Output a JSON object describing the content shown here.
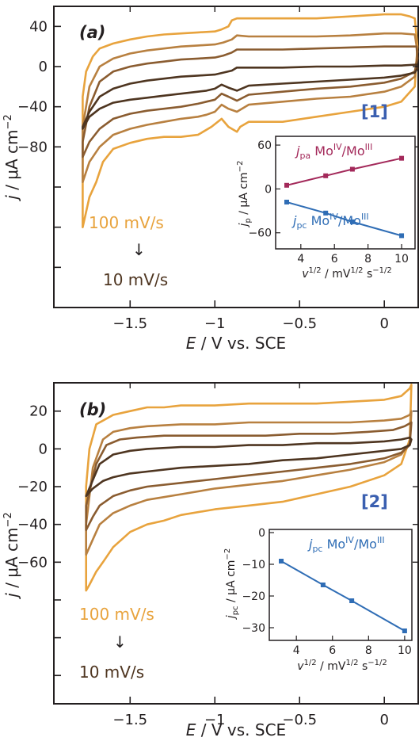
{
  "colors": {
    "scan_colors": [
      "#e8a33d",
      "#b88040",
      "#8a5c30",
      "#4e3520"
    ],
    "pa_color": "#a3295a",
    "pc_color": "#2f6db5",
    "label_color": "#3a5fb0",
    "fast_color": "#e8a33d",
    "slow_color": "#4e3520",
    "axis_color": "#231f20"
  },
  "panels": [
    {
      "label": "(a)",
      "compound": "[1]",
      "rate_fast": "100 mV/s",
      "rate_slow": "10 mV/s",
      "arrow": "↓",
      "x_title": {
        "main": "E",
        "rest": " / V vs. SCE"
      },
      "y_title": {
        "main": "j",
        "rest": " / μA cm",
        "sup": "−2"
      },
      "x_ticks": [
        "−1.5",
        "−1",
        "−0.5",
        "0"
      ],
      "y_ticks": [
        "40",
        "0",
        "−40",
        "−80"
      ],
      "inset": {
        "y_title": {
          "main": "j",
          "sub": "p",
          "rest": " / μA cm",
          "sup": "−2"
        },
        "x_title": {
          "main": "v",
          "sup1": "1/2",
          "rest1": " / mV",
          "sup2": "1/2",
          "rest2": " s",
          "sup3": "−1/2"
        },
        "x_ticks": [
          "4",
          "6",
          "8",
          "10"
        ],
        "y_ticks": [
          "60",
          "0",
          "−60"
        ],
        "series_labels": [
          {
            "main": "j",
            "sub": "pa",
            "ox1": "IV",
            "ox2": "III",
            "text1": " Mo",
            "text2": "/Mo"
          },
          {
            "main": "j",
            "sub": "pc",
            "ox1": "IV",
            "ox2": "III",
            "text1": " Mo",
            "text2": "/Mo"
          }
        ]
      }
    },
    {
      "label": "(b)",
      "compound": "[2]",
      "rate_fast": "100 mV/s",
      "rate_slow": "10 mV/s",
      "arrow": "↓",
      "x_title": {
        "main": "E",
        "rest": " / V vs. SCE"
      },
      "y_title": {
        "main": "j",
        "rest": " / μA cm",
        "sup": "−2"
      },
      "x_ticks": [
        "−1.5",
        "−1",
        "−0.5",
        "0"
      ],
      "y_ticks": [
        "20",
        "0",
        "−20",
        "−40",
        "−60"
      ],
      "inset": {
        "y_title": {
          "main": "j",
          "sub": "pc",
          "rest": " / μA cm",
          "sup": "−2"
        },
        "x_title": {
          "main": "v",
          "sup1": "1/2",
          "rest1": " / mV",
          "sup2": "1/2",
          "rest2": " s",
          "sup3": "−1/2"
        },
        "x_ticks": [
          "4",
          "6",
          "8",
          "10"
        ],
        "y_ticks": [
          "0",
          "−10",
          "−20",
          "−30"
        ],
        "series_labels": [
          {
            "main": "j",
            "sub": "pc",
            "ox1": "IV",
            "ox2": "III",
            "text1": " Mo",
            "text2": "/Mo"
          }
        ]
      }
    }
  ],
  "chart_data": [
    {
      "type": "line",
      "x_axis": {
        "ticks": [
          -1.5,
          -1,
          -0.5,
          0
        ],
        "range": [
          -1.95,
          0.2
        ]
      },
      "y_axis": {
        "ticks": [
          40,
          0,
          -40,
          -80
        ],
        "range": [
          -240,
          60
        ]
      },
      "series": [
        {
          "x": [
            -1.78,
            -1.76,
            -1.72,
            -1.68,
            -1.6,
            -1.5,
            -1.4,
            -1.3,
            -1.2,
            -1.1,
            -1.0,
            -0.96,
            -0.92,
            -0.9,
            -0.87,
            -0.8,
            -0.6,
            -0.4,
            -0.2,
            0.0,
            0.1,
            0.15,
            0.18,
            0.2,
            0.18,
            0.1,
            0.0,
            -0.2,
            -0.4,
            -0.6,
            -0.8,
            -0.85,
            -0.87,
            -0.92,
            -0.96,
            -1.02,
            -1.1,
            -1.2,
            -1.3,
            -1.4,
            -1.5,
            -1.6,
            -1.66,
            -1.7,
            -1.74,
            -1.78
          ],
          "y": [
            -30,
            -5,
            10,
            18,
            23,
            27,
            30,
            32,
            33,
            34,
            35,
            37,
            40,
            46,
            48,
            48,
            48,
            48,
            50,
            52,
            52,
            50,
            48,
            20,
            -20,
            -35,
            -40,
            -45,
            -50,
            -55,
            -55,
            -60,
            -65,
            -60,
            -52,
            -60,
            -68,
            -70,
            -70,
            -72,
            -76,
            -82,
            -95,
            -115,
            -130,
            -160
          ]
        },
        {
          "x": [
            -1.78,
            -1.74,
            -1.68,
            -1.6,
            -1.5,
            -1.4,
            -1.3,
            -1.2,
            -1.1,
            -1.0,
            -0.95,
            -0.9,
            -0.87,
            -0.8,
            -0.6,
            -0.4,
            -0.2,
            0.0,
            0.1,
            0.18,
            0.2,
            0.18,
            0.1,
            0.0,
            -0.2,
            -0.4,
            -0.6,
            -0.8,
            -0.87,
            -0.92,
            -0.96,
            -1.0,
            -1.05,
            -1.1,
            -1.2,
            -1.3,
            -1.4,
            -1.5,
            -1.6,
            -1.68,
            -1.74,
            -1.78
          ],
          "y": [
            -60,
            -20,
            0,
            8,
            13,
            16,
            18,
            20,
            21,
            22,
            24,
            27,
            31,
            30,
            30,
            30,
            31,
            33,
            33,
            32,
            15,
            -10,
            -20,
            -25,
            -30,
            -32,
            -35,
            -38,
            -45,
            -42,
            -38,
            -45,
            -48,
            -50,
            -52,
            -55,
            -58,
            -62,
            -68,
            -80,
            -95,
            -115
          ]
        },
        {
          "x": [
            -1.78,
            -1.74,
            -1.68,
            -1.6,
            -1.5,
            -1.4,
            -1.3,
            -1.2,
            -1.1,
            -1.0,
            -0.95,
            -0.9,
            -0.87,
            -0.8,
            -0.6,
            -0.4,
            -0.2,
            0.0,
            0.1,
            0.19,
            0.2,
            0.18,
            0.1,
            0.0,
            -0.2,
            -0.4,
            -0.6,
            -0.8,
            -0.87,
            -0.92,
            -0.96,
            -1.0,
            -1.05,
            -1.1,
            -1.2,
            -1.3,
            -1.4,
            -1.5,
            -1.6,
            -1.68,
            -1.74,
            -1.78
          ],
          "y": [
            -75,
            -40,
            -15,
            -5,
            0,
            3,
            5,
            7,
            8,
            9,
            11,
            14,
            17,
            17,
            17,
            18,
            19,
            20,
            20,
            20,
            8,
            -5,
            -12,
            -16,
            -20,
            -22,
            -25,
            -28,
            -34,
            -30,
            -27,
            -33,
            -35,
            -37,
            -40,
            -42,
            -44,
            -47,
            -52,
            -62,
            -75,
            -90
          ]
        },
        {
          "x": [
            -1.78,
            -1.74,
            -1.68,
            -1.6,
            -1.5,
            -1.4,
            -1.3,
            -1.2,
            -1.1,
            -1.0,
            -0.95,
            -0.9,
            -0.87,
            -0.8,
            -0.6,
            -0.4,
            -0.2,
            0.0,
            0.1,
            0.19,
            0.2,
            0.18,
            0.1,
            0.0,
            -0.2,
            -0.4,
            -0.6,
            -0.8,
            -0.87,
            -0.92,
            -0.96,
            -1.0,
            -1.05,
            -1.1,
            -1.2,
            -1.3,
            -1.4,
            -1.5,
            -1.6,
            -1.68,
            -1.74,
            -1.78
          ],
          "y": [
            -60,
            -45,
            -30,
            -22,
            -17,
            -14,
            -12,
            -10,
            -9,
            -8,
            -6,
            -4,
            -1,
            -1,
            -1,
            0,
            0,
            1,
            1,
            2,
            -2,
            -6,
            -9,
            -11,
            -13,
            -15,
            -17,
            -19,
            -24,
            -21,
            -18,
            -22,
            -24,
            -25,
            -27,
            -29,
            -31,
            -33,
            -36,
            -42,
            -50,
            -62
          ]
        }
      ],
      "inset": {
        "type": "line",
        "x_axis": {
          "ticks": [
            4,
            6,
            8,
            10
          ],
          "range": [
            2.5,
            10.8
          ]
        },
        "y_axis": {
          "ticks": [
            60,
            0,
            -60
          ],
          "range": [
            -82,
            72
          ]
        },
        "series": [
          {
            "x": [
              3.16,
              5.48,
              7.07,
              10.0
            ],
            "y": [
              5,
              18,
              27,
              42
            ]
          },
          {
            "x": [
              3.16,
              5.48,
              7.07,
              10.0
            ],
            "y": [
              -18,
              -33,
              -45,
              -64
            ]
          }
        ]
      }
    },
    {
      "type": "line",
      "x_axis": {
        "ticks": [
          -1.5,
          -1,
          -0.5,
          0
        ],
        "range": [
          -1.95,
          0.2
        ]
      },
      "y_axis": {
        "ticks": [
          20,
          0,
          -20,
          -40,
          -60
        ],
        "range": [
          -135,
          35
        ]
      },
      "series": [
        {
          "x": [
            -1.76,
            -1.74,
            -1.7,
            -1.6,
            -1.5,
            -1.4,
            -1.3,
            -1.2,
            -1.0,
            -0.8,
            -0.6,
            -0.4,
            -0.2,
            0.0,
            0.1,
            0.15,
            0.16,
            0.15,
            0.1,
            0.0,
            -0.2,
            -0.4,
            -0.6,
            -0.8,
            -1.0,
            -1.2,
            -1.3,
            -1.4,
            -1.5,
            -1.6,
            -1.66,
            -1.7,
            -1.74,
            -1.76
          ],
          "y": [
            -20,
            0,
            13,
            18,
            20,
            22,
            22,
            23,
            23,
            24,
            24,
            24,
            25,
            26,
            28,
            32,
            34,
            5,
            -8,
            -14,
            -20,
            -24,
            -28,
            -30,
            -32,
            -35,
            -38,
            -40,
            -44,
            -52,
            -60,
            -65,
            -72,
            -75
          ]
        },
        {
          "x": [
            -1.76,
            -1.72,
            -1.66,
            -1.6,
            -1.5,
            -1.4,
            -1.2,
            -1.0,
            -0.8,
            -0.6,
            -0.4,
            -0.2,
            0.0,
            0.1,
            0.15,
            0.16,
            0.15,
            0.1,
            0.0,
            -0.2,
            -0.4,
            -0.6,
            -0.8,
            -1.0,
            -1.2,
            -1.4,
            -1.5,
            -1.6,
            -1.68,
            -1.72,
            -1.76
          ],
          "y": [
            -40,
            -10,
            5,
            9,
            11,
            12,
            13,
            13,
            14,
            14,
            14,
            14,
            15,
            16,
            18,
            20,
            3,
            -3,
            -7,
            -11,
            -14,
            -17,
            -19,
            -21,
            -24,
            -27,
            -30,
            -34,
            -40,
            -48,
            -56
          ]
        },
        {
          "x": [
            -1.76,
            -1.7,
            -1.64,
            -1.56,
            -1.46,
            -1.3,
            -1.1,
            -0.9,
            -0.7,
            -0.5,
            -0.3,
            -0.1,
            0.05,
            0.12,
            0.16,
            0.15,
            0.1,
            0.0,
            -0.2,
            -0.4,
            -0.6,
            -0.8,
            -1.0,
            -1.2,
            -1.4,
            -1.5,
            -1.6,
            -1.68,
            -1.72,
            -1.76
          ],
          "y": [
            -30,
            -8,
            2,
            5,
            6,
            7,
            7,
            7,
            7,
            8,
            8,
            9,
            10,
            12,
            14,
            2,
            -2,
            -5,
            -8,
            -10,
            -12,
            -14,
            -16,
            -18,
            -20,
            -22,
            -25,
            -30,
            -36,
            -43
          ]
        },
        {
          "x": [
            -1.76,
            -1.68,
            -1.6,
            -1.5,
            -1.4,
            -1.2,
            -1.0,
            -0.8,
            -0.6,
            -0.4,
            -0.2,
            0.0,
            0.1,
            0.15,
            0.16,
            0.15,
            0.1,
            0.0,
            -0.2,
            -0.4,
            -0.6,
            -0.8,
            -1.0,
            -1.2,
            -1.4,
            -1.5,
            -1.6,
            -1.66,
            -1.72,
            -1.76
          ],
          "y": [
            -25,
            -8,
            -3,
            -1,
            0,
            1,
            1,
            2,
            2,
            3,
            3,
            4,
            5,
            6,
            5,
            2,
            0,
            -1,
            -3,
            -5,
            -6,
            -8,
            -9,
            -10,
            -12,
            -13,
            -15,
            -17,
            -21,
            -25
          ]
        }
      ],
      "inset": {
        "type": "line",
        "x_axis": {
          "ticks": [
            4,
            6,
            8,
            10
          ],
          "range": [
            2.5,
            10.4
          ]
        },
        "y_axis": {
          "ticks": [
            0,
            -10,
            -20,
            -30
          ],
          "range": [
            -34,
            1
          ]
        },
        "series": [
          {
            "x": [
              3.16,
              5.48,
              7.07,
              10.0
            ],
            "y": [
              -9,
              -16.5,
              -21.5,
              -31
            ]
          }
        ]
      }
    }
  ]
}
